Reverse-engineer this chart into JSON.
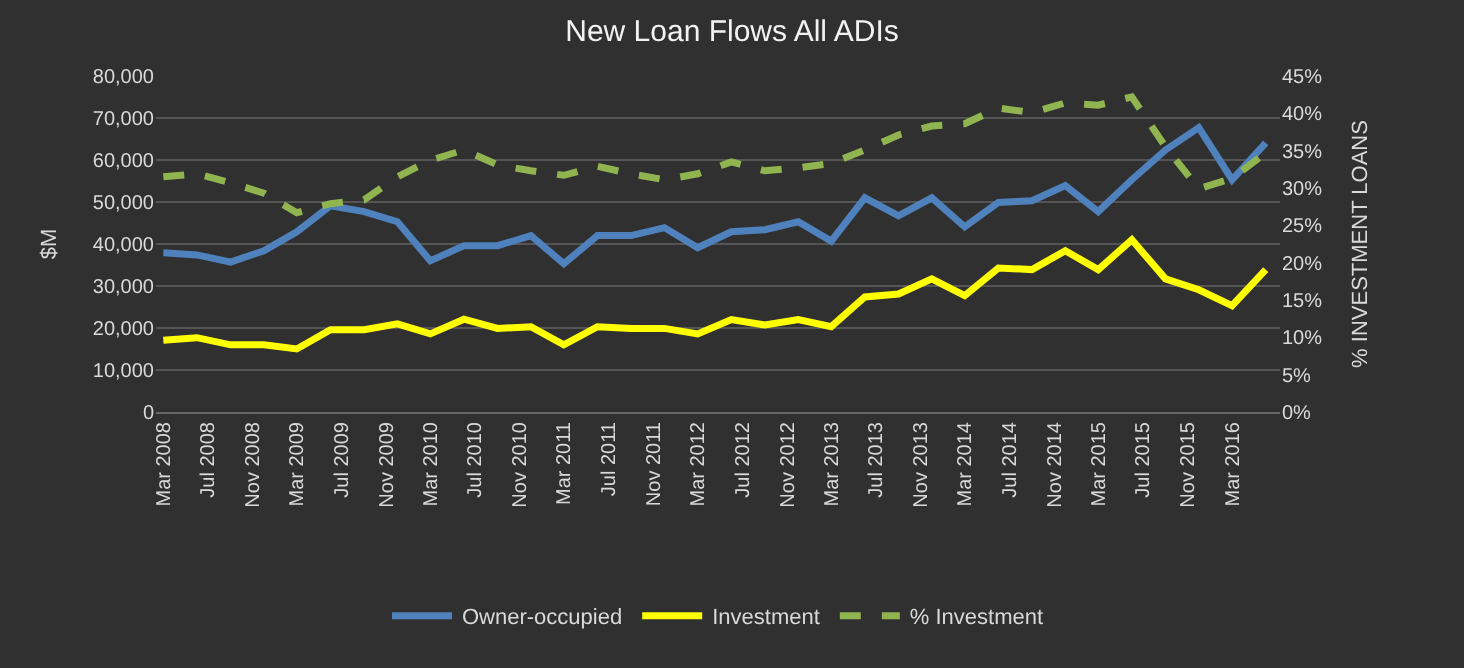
{
  "chart_data": {
    "type": "line",
    "title": "New Loan Flows All ADIs",
    "ylabel": "$M",
    "y2label": "% INVESTMENT LOANS",
    "x": [
      "2008-03",
      "2008-06",
      "2008-09",
      "2008-12",
      "2009-03",
      "2009-06",
      "2009-09",
      "2009-12",
      "2010-03",
      "2010-06",
      "2010-09",
      "2010-12",
      "2011-03",
      "2011-06",
      "2011-09",
      "2011-12",
      "2012-03",
      "2012-06",
      "2012-09",
      "2012-12",
      "2013-03",
      "2013-06",
      "2013-09",
      "2013-12",
      "2014-03",
      "2014-06",
      "2014-09",
      "2014-12",
      "2015-03",
      "2015-06",
      "2015-09",
      "2015-12",
      "2016-03",
      "2016-06"
    ],
    "series": [
      {
        "name": "Owner-occupied",
        "color": "#4f81bd",
        "values": [
          37900,
          37400,
          35700,
          38400,
          42900,
          49100,
          47700,
          45300,
          36000,
          39600,
          39600,
          42000,
          35300,
          42000,
          42000,
          43900,
          39100,
          42900,
          43400,
          45300,
          40700,
          51000,
          46700,
          51000,
          44100,
          49900,
          50300,
          53900,
          47700,
          55300,
          62400,
          67700,
          55300,
          64100
        ]
      },
      {
        "name": "Investment",
        "color": "#ffff00",
        "values": [
          17100,
          17700,
          16000,
          16000,
          15000,
          19600,
          19600,
          21000,
          18600,
          22100,
          19900,
          20300,
          16000,
          20300,
          19900,
          19900,
          18600,
          22000,
          20700,
          22000,
          20300,
          27400,
          28100,
          31700,
          27700,
          34300,
          33900,
          38400,
          33900,
          41000,
          31700,
          29100,
          25300,
          33900
        ]
      },
      {
        "name": "% Investment",
        "color": "#8fb450",
        "axis": "y2",
        "line_style": "dashed",
        "values": [
          31.5,
          31.9,
          30.7,
          29.3,
          26.7,
          27.9,
          28.4,
          31.5,
          33.7,
          35.1,
          33.1,
          32.3,
          31.7,
          32.9,
          31.9,
          31.1,
          31.9,
          33.5,
          32.3,
          32.7,
          33.3,
          35.1,
          37.1,
          38.3,
          38.6,
          40.7,
          40.1,
          41.4,
          41.1,
          42.2,
          35.5,
          29.9,
          31.3,
          34.7
        ]
      }
    ],
    "xlim": [
      "2008-02-10",
      "2016-07-10"
    ],
    "xticks": [
      {
        "value": "2008-03",
        "label": "Mar 2008"
      },
      {
        "value": "2008-07",
        "label": "Jul 2008"
      },
      {
        "value": "2008-11",
        "label": "Nov 2008"
      },
      {
        "value": "2009-03",
        "label": "Mar 2009"
      },
      {
        "value": "2009-07",
        "label": "Jul 2009"
      },
      {
        "value": "2009-11",
        "label": "Nov 2009"
      },
      {
        "value": "2010-03",
        "label": "Mar 2010"
      },
      {
        "value": "2010-07",
        "label": "Jul 2010"
      },
      {
        "value": "2010-11",
        "label": "Nov 2010"
      },
      {
        "value": "2011-03",
        "label": "Mar 2011"
      },
      {
        "value": "2011-07",
        "label": "Jul 2011"
      },
      {
        "value": "2011-11",
        "label": "Nov 2011"
      },
      {
        "value": "2012-03",
        "label": "Mar 2012"
      },
      {
        "value": "2012-07",
        "label": "Jul 2012"
      },
      {
        "value": "2012-11",
        "label": "Nov 2012"
      },
      {
        "value": "2013-03",
        "label": "Mar 2013"
      },
      {
        "value": "2013-07",
        "label": "Jul 2013"
      },
      {
        "value": "2013-11",
        "label": "Nov 2013"
      },
      {
        "value": "2014-03",
        "label": "Mar 2014"
      },
      {
        "value": "2014-07",
        "label": "Jul 2014"
      },
      {
        "value": "2014-11",
        "label": "Nov 2014"
      },
      {
        "value": "2015-03",
        "label": "Mar 2015"
      },
      {
        "value": "2015-07",
        "label": "Jul 2015"
      },
      {
        "value": "2015-11",
        "label": "Nov 2015"
      },
      {
        "value": "2016-03",
        "label": "Mar 2016"
      }
    ],
    "ylim": [
      0,
      80000
    ],
    "yticks": [
      {
        "value": 0,
        "label": "0"
      },
      {
        "value": 10000,
        "label": "10,000"
      },
      {
        "value": 20000,
        "label": "20,000"
      },
      {
        "value": 30000,
        "label": "30,000"
      },
      {
        "value": 40000,
        "label": "40,000"
      },
      {
        "value": 50000,
        "label": "50,000"
      },
      {
        "value": 60000,
        "label": "60,000"
      },
      {
        "value": 70000,
        "label": "70,000"
      },
      {
        "value": 80000,
        "label": "80,000"
      }
    ],
    "y2lim": [
      0,
      45
    ],
    "y2ticks": [
      {
        "value": 0,
        "label": "0%"
      },
      {
        "value": 5,
        "label": "5%"
      },
      {
        "value": 10,
        "label": "10%"
      },
      {
        "value": 15,
        "label": "15%"
      },
      {
        "value": 20,
        "label": "20%"
      },
      {
        "value": 25,
        "label": "25%"
      },
      {
        "value": 30,
        "label": "30%"
      },
      {
        "value": 35,
        "label": "35%"
      },
      {
        "value": 40,
        "label": "40%"
      },
      {
        "value": 45,
        "label": "45%"
      }
    ],
    "grid": "y",
    "legend": "bottom",
    "marker": "none",
    "line_style": "solid"
  }
}
